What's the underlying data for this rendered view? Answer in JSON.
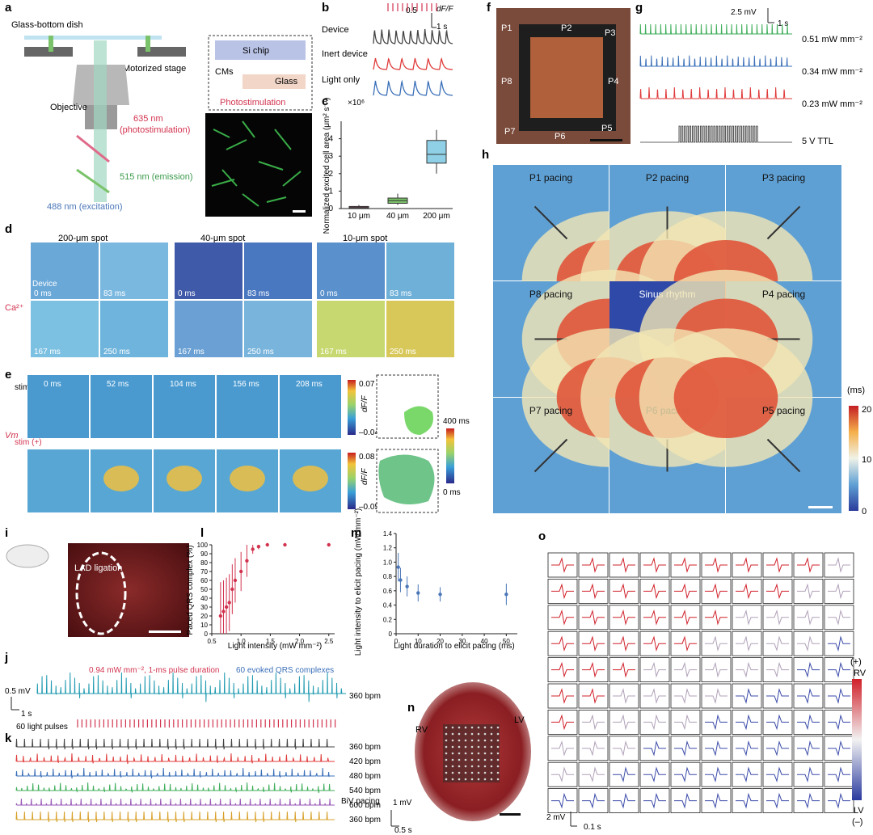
{
  "panels": {
    "a": "a",
    "b": "b",
    "c": "c",
    "d": "d",
    "e": "e",
    "f": "f",
    "g": "g",
    "h": "h",
    "i": "i",
    "j": "j",
    "k": "k",
    "l": "l",
    "m": "m",
    "n": "n",
    "o": "o"
  },
  "a": {
    "glass_dish": "Glass-bottom dish",
    "motorized_stage": "Motorized stage",
    "objective": "Objective",
    "photostim_nm": "635 nm",
    "photostim_txt": "(photostimulation)",
    "emission": "515 nm (emission)",
    "excitation": "488 nm (excitation)",
    "si_chip": "Si chip",
    "cms": "CMs",
    "glass": "Glass",
    "photostimulation": "Photostimulation"
  },
  "b": {
    "scale_val": "0.5",
    "scale_unit": "dF/F",
    "scale_time": "1 s",
    "rows": [
      "Device",
      "Inert device",
      "Light only"
    ]
  },
  "c": {
    "exp": "×10⁶",
    "ylabel": "Normalized excited cell area (μm² s⁻¹)",
    "yticks": [
      "0",
      "1",
      "2",
      "3",
      "4"
    ],
    "categories": [
      "10 μm",
      "40 μm",
      "200 μm"
    ]
  },
  "d": {
    "titles": [
      "200-μm spot",
      "40-μm spot",
      "10-μm spot"
    ],
    "times": [
      "0 ms",
      "83 ms",
      "167 ms",
      "250 ms"
    ],
    "device": "Device",
    "ca": "Ca²⁺"
  },
  "e": {
    "stim_minus": "stim (–)",
    "stim_plus": "stim (+)",
    "times": [
      "0 ms",
      "52 ms",
      "104 ms",
      "156 ms",
      "208 ms"
    ],
    "vm": "Vm",
    "cb1_max": "0.07",
    "cb1_min": "–0.04",
    "cb2_max": "0.08",
    "cb2_min": "–0.05",
    "dff": "dF/F",
    "map_max": "400 ms",
    "map_min": "0 ms"
  },
  "f": {
    "points": [
      "P1",
      "P2",
      "P3",
      "P4",
      "P5",
      "P6",
      "P7",
      "P8"
    ]
  },
  "g": {
    "scale_mv": "2.5 mV",
    "scale_s": "1 s",
    "intensities": [
      "0.51 mW mm⁻²",
      "0.34 mW mm⁻²",
      "0.23 mW mm⁻²"
    ],
    "ttl": "5 V TTL"
  },
  "h": {
    "tiles": [
      "P1 pacing",
      "P2 pacing",
      "P3 pacing",
      "P8 pacing",
      "Sinus rhythm",
      "P4 pacing",
      "P7 pacing",
      "P6 pacing",
      "P5 pacing"
    ],
    "cb_unit": "(ms)",
    "cb_ticks": [
      "20",
      "10",
      "0"
    ]
  },
  "i": {
    "lad": "LAD ligation"
  },
  "l": {
    "ylabel": "Paced QRS complex (%)",
    "xlabel": "Light intensity (mW mm⁻²)",
    "yticks": [
      "0",
      "10",
      "20",
      "30",
      "40",
      "50",
      "60",
      "70",
      "80",
      "90",
      "100"
    ],
    "xticks": [
      "0.5",
      "1.0",
      "1.5",
      "2.0",
      "2.5"
    ]
  },
  "m": {
    "ylabel": "Light intensity to elicit pacing (mW mm⁻²)",
    "xlabel": "Light duration to elicit pacing (ms)",
    "yticks": [
      "0",
      "0.2",
      "0.4",
      "0.6",
      "0.8",
      "1.0",
      "1.2",
      "1.4"
    ],
    "xticks": [
      "0",
      "10",
      "20",
      "30",
      "40",
      "50"
    ]
  },
  "j": {
    "scale_mv": "0.5 mV",
    "scale_s": "1 s",
    "note_red": "0.94 mW mm⁻², 1-ms pulse duration",
    "note_blue": "60 evoked QRS complexes",
    "bpm": "360 bpm",
    "pulses": "60 light pulses"
  },
  "k": {
    "rates": [
      "360 bpm",
      "420 bpm",
      "480 bpm",
      "540 bpm",
      "600 bpm",
      "360 bpm"
    ],
    "biv": "BiV pacing",
    "scale_mv": "1 mV",
    "scale_s": "0.5 s"
  },
  "n": {
    "rv": "RV",
    "lv": "LV"
  },
  "o": {
    "plus": "(+)",
    "rv": "RV",
    "lv": "LV",
    "minus": "(–)",
    "scale_mv": "2 mV",
    "scale_s": "0.1 s"
  },
  "chart_data": [
    {
      "type": "box",
      "title": "",
      "categories": [
        "10 μm",
        "40 μm",
        "200 μm"
      ],
      "ylabel": "Normalized excited cell area (μm² s⁻¹)",
      "yscale": "×10⁶",
      "ylim": [
        0,
        5
      ],
      "boxes": [
        {
          "min": 0.02,
          "q1": 0.05,
          "median": 0.08,
          "q3": 0.12,
          "max": 0.2
        },
        {
          "min": 0.2,
          "q1": 0.3,
          "median": 0.45,
          "q3": 0.6,
          "max": 0.85
        },
        {
          "min": 2.0,
          "q1": 2.6,
          "median": 3.1,
          "q3": 3.9,
          "max": 4.5
        }
      ]
    },
    {
      "type": "scatter",
      "title": "",
      "xlabel": "Light intensity (mW mm⁻²)",
      "ylabel": "Paced QRS complex (%)",
      "xlim": [
        0.5,
        2.6
      ],
      "ylim": [
        0,
        100
      ],
      "x": [
        0.65,
        0.7,
        0.75,
        0.8,
        0.85,
        0.9,
        1.0,
        1.1,
        1.2,
        1.3,
        1.45,
        1.75,
        2.5
      ],
      "y": [
        20,
        25,
        30,
        35,
        50,
        60,
        70,
        82,
        95,
        98,
        100,
        100,
        100
      ],
      "err": [
        38,
        35,
        33,
        32,
        28,
        25,
        22,
        18,
        5,
        3,
        0,
        0,
        0
      ]
    },
    {
      "type": "scatter",
      "title": "",
      "xlabel": "Light duration to elicit pacing (ms)",
      "ylabel": "Light intensity to elicit pacing (mW mm⁻²)",
      "xlim": [
        0,
        55
      ],
      "ylim": [
        0,
        1.4
      ],
      "x": [
        1,
        2,
        5,
        10,
        20,
        50
      ],
      "y": [
        0.93,
        0.75,
        0.66,
        0.57,
        0.55,
        0.55
      ],
      "err": [
        0.2,
        0.17,
        0.14,
        0.12,
        0.1,
        0.15
      ]
    }
  ]
}
